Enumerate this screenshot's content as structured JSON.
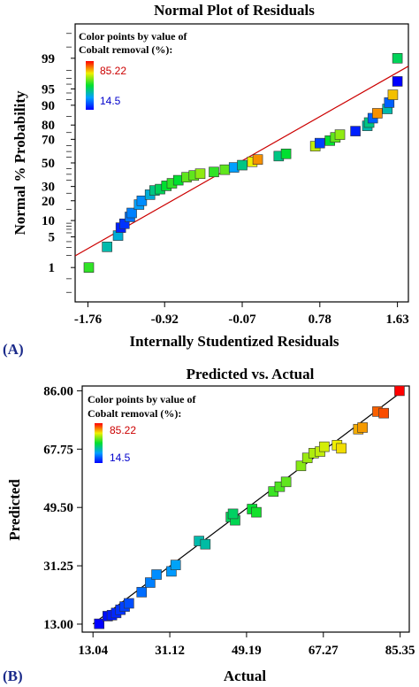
{
  "panels": [
    {
      "label": "(A)",
      "legend": {
        "line1": "Color points by value of",
        "line2": "Cobalt removal (%):",
        "max": "85.22",
        "min": "14.5",
        "max_color": "#cc0000",
        "min_color": "#0000cc"
      }
    },
    {
      "label": "(B)",
      "legend": {
        "line1": "Color points by value of",
        "line2": "Cobalt removal (%):",
        "max": "85.22",
        "min": "14.5",
        "max_color": "#cc0000",
        "min_color": "#0000cc"
      }
    }
  ],
  "colors": {
    "scale_low": "#0000ff",
    "scale_high": "#ff0000",
    "fit_line_a": "#cc0000",
    "fit_line_b": "#000000"
  },
  "chart_data": [
    {
      "type": "scatter",
      "title": "Normal Plot of Residuals",
      "xlabel": "Internally Studentized Residuals",
      "ylabel": "Normal % Probability",
      "x_ticks": [
        "-1.76",
        "-0.92",
        "-0.07",
        "0.78",
        "1.63"
      ],
      "x_tick_values": [
        -1.76,
        -0.92,
        -0.07,
        0.78,
        1.63
      ],
      "y_ticks": [
        "1",
        "5",
        "10",
        "20",
        "30",
        "50",
        "70",
        "80",
        "90",
        "95",
        "99"
      ],
      "y_tick_values": [
        1,
        5,
        10,
        20,
        30,
        50,
        70,
        80,
        90,
        95,
        99
      ],
      "y_scale": "normal-probability",
      "xlim": [
        -1.9,
        1.75
      ],
      "ylim": [
        0.1,
        99.9
      ],
      "grid": false,
      "fit_line": [
        [
          -1.9,
          1.94
        ],
        [
          1.75,
          98.42
        ]
      ],
      "points": [
        {
          "x": -1.75,
          "y": 1.0,
          "c": 0.55
        },
        {
          "x": -1.55,
          "y": 3.1,
          "c": 0.35
        },
        {
          "x": -1.43,
          "y": 5.3,
          "c": 0.3
        },
        {
          "x": -1.4,
          "y": 7.5,
          "c": 0.05
        },
        {
          "x": -1.36,
          "y": 8.8,
          "c": 0.08
        },
        {
          "x": -1.3,
          "y": 11.5,
          "c": 0.18
        },
        {
          "x": -1.28,
          "y": 13.3,
          "c": 0.2
        },
        {
          "x": -1.2,
          "y": 17.7,
          "c": 0.25
        },
        {
          "x": -1.17,
          "y": 20.0,
          "c": 0.22
        },
        {
          "x": -1.08,
          "y": 24.0,
          "c": 0.3
        },
        {
          "x": -1.03,
          "y": 27.0,
          "c": 0.4
        },
        {
          "x": -0.97,
          "y": 28.0,
          "c": 0.45
        },
        {
          "x": -0.9,
          "y": 30.5,
          "c": 0.5
        },
        {
          "x": -0.84,
          "y": 32.5,
          "c": 0.55
        },
        {
          "x": -0.77,
          "y": 35.0,
          "c": 0.5
        },
        {
          "x": -0.68,
          "y": 37.5,
          "c": 0.6
        },
        {
          "x": -0.6,
          "y": 39.0,
          "c": 0.6
        },
        {
          "x": -0.53,
          "y": 40.5,
          "c": 0.65
        },
        {
          "x": -0.38,
          "y": 42.0,
          "c": 0.55
        },
        {
          "x": -0.26,
          "y": 44.0,
          "c": 0.6
        },
        {
          "x": -0.16,
          "y": 46.0,
          "c": 0.25
        },
        {
          "x": -0.07,
          "y": 48.0,
          "c": 0.4
        },
        {
          "x": 0.04,
          "y": 51.0,
          "c": 0.75
        },
        {
          "x": 0.1,
          "y": 53.0,
          "c": 0.85
        },
        {
          "x": 0.33,
          "y": 56.0,
          "c": 0.4
        },
        {
          "x": 0.41,
          "y": 58.0,
          "c": 0.5
        },
        {
          "x": 0.73,
          "y": 64.5,
          "c": 0.7
        },
        {
          "x": 0.78,
          "y": 67.0,
          "c": 0.1
        },
        {
          "x": 0.89,
          "y": 69.0,
          "c": 0.5
        },
        {
          "x": 0.95,
          "y": 71.5,
          "c": 0.6
        },
        {
          "x": 1.0,
          "y": 73.5,
          "c": 0.65
        },
        {
          "x": 1.17,
          "y": 76.0,
          "c": 0.05
        },
        {
          "x": 1.3,
          "y": 79.5,
          "c": 0.35
        },
        {
          "x": 1.32,
          "y": 81.5,
          "c": 0.4
        },
        {
          "x": 1.36,
          "y": 84.0,
          "c": 0.15
        },
        {
          "x": 1.41,
          "y": 86.5,
          "c": 0.85
        },
        {
          "x": 1.52,
          "y": 88.5,
          "c": 0.35
        },
        {
          "x": 1.54,
          "y": 91.0,
          "c": 0.15
        },
        {
          "x": 1.58,
          "y": 93.5,
          "c": 0.8
        },
        {
          "x": 1.63,
          "y": 96.5,
          "c": 0.0
        },
        {
          "x": 1.63,
          "y": 99.0,
          "c": 0.45
        }
      ]
    },
    {
      "type": "scatter",
      "title": "Predicted vs. Actual",
      "xlabel": "Actual",
      "ylabel": "Predicted",
      "x_ticks": [
        "13.04",
        "31.12",
        "49.19",
        "67.27",
        "85.35"
      ],
      "x_tick_values": [
        13.04,
        31.12,
        49.19,
        67.27,
        85.35
      ],
      "y_ticks": [
        "13.00",
        "31.25",
        "49.50",
        "67.75",
        "86.00"
      ],
      "y_tick_values": [
        13.0,
        31.25,
        49.5,
        67.75,
        86.0
      ],
      "xlim": [
        10.5,
        87.5
      ],
      "ylim": [
        10.5,
        87.5
      ],
      "grid": false,
      "fit_line": [
        [
          13.04,
          13.04
        ],
        [
          85.35,
          85.35
        ]
      ],
      "points": [
        {
          "x": 14.5,
          "y": 13.1,
          "c": 0.0
        },
        {
          "x": 16.5,
          "y": 15.5,
          "c": 0.02
        },
        {
          "x": 17.5,
          "y": 15.8,
          "c": 0.04
        },
        {
          "x": 18.5,
          "y": 16.5,
          "c": 0.06
        },
        {
          "x": 19.5,
          "y": 17.5,
          "c": 0.08
        },
        {
          "x": 20.5,
          "y": 18.5,
          "c": 0.1
        },
        {
          "x": 21.5,
          "y": 19.5,
          "c": 0.12
        },
        {
          "x": 24.5,
          "y": 23.0,
          "c": 0.17
        },
        {
          "x": 26.5,
          "y": 26.0,
          "c": 0.2
        },
        {
          "x": 28.0,
          "y": 28.5,
          "c": 0.22
        },
        {
          "x": 31.5,
          "y": 29.5,
          "c": 0.24
        },
        {
          "x": 32.5,
          "y": 31.5,
          "c": 0.26
        },
        {
          "x": 38.0,
          "y": 39.0,
          "c": 0.35
        },
        {
          "x": 39.5,
          "y": 38.0,
          "c": 0.36
        },
        {
          "x": 45.5,
          "y": 46.5,
          "c": 0.45
        },
        {
          "x": 46.5,
          "y": 45.5,
          "c": 0.46
        },
        {
          "x": 46.0,
          "y": 47.5,
          "c": 0.44
        },
        {
          "x": 50.5,
          "y": 49.0,
          "c": 0.5
        },
        {
          "x": 51.5,
          "y": 48.0,
          "c": 0.52
        },
        {
          "x": 55.5,
          "y": 54.5,
          "c": 0.56
        },
        {
          "x": 57.0,
          "y": 56.0,
          "c": 0.58
        },
        {
          "x": 58.5,
          "y": 57.5,
          "c": 0.6
        },
        {
          "x": 62.0,
          "y": 62.5,
          "c": 0.64
        },
        {
          "x": 63.5,
          "y": 65.0,
          "c": 0.66
        },
        {
          "x": 65.0,
          "y": 66.5,
          "c": 0.68
        },
        {
          "x": 66.5,
          "y": 67.0,
          "c": 0.7
        },
        {
          "x": 67.5,
          "y": 68.5,
          "c": 0.72
        },
        {
          "x": 70.5,
          "y": 69.0,
          "c": 0.75
        },
        {
          "x": 71.5,
          "y": 68.0,
          "c": 0.77
        },
        {
          "x": 75.5,
          "y": 74.0,
          "c": 0.82
        },
        {
          "x": 76.5,
          "y": 74.5,
          "c": 0.84
        },
        {
          "x": 80.0,
          "y": 79.5,
          "c": 0.9
        },
        {
          "x": 81.5,
          "y": 79.0,
          "c": 0.92
        },
        {
          "x": 85.2,
          "y": 86.0,
          "c": 1.0
        }
      ]
    }
  ]
}
